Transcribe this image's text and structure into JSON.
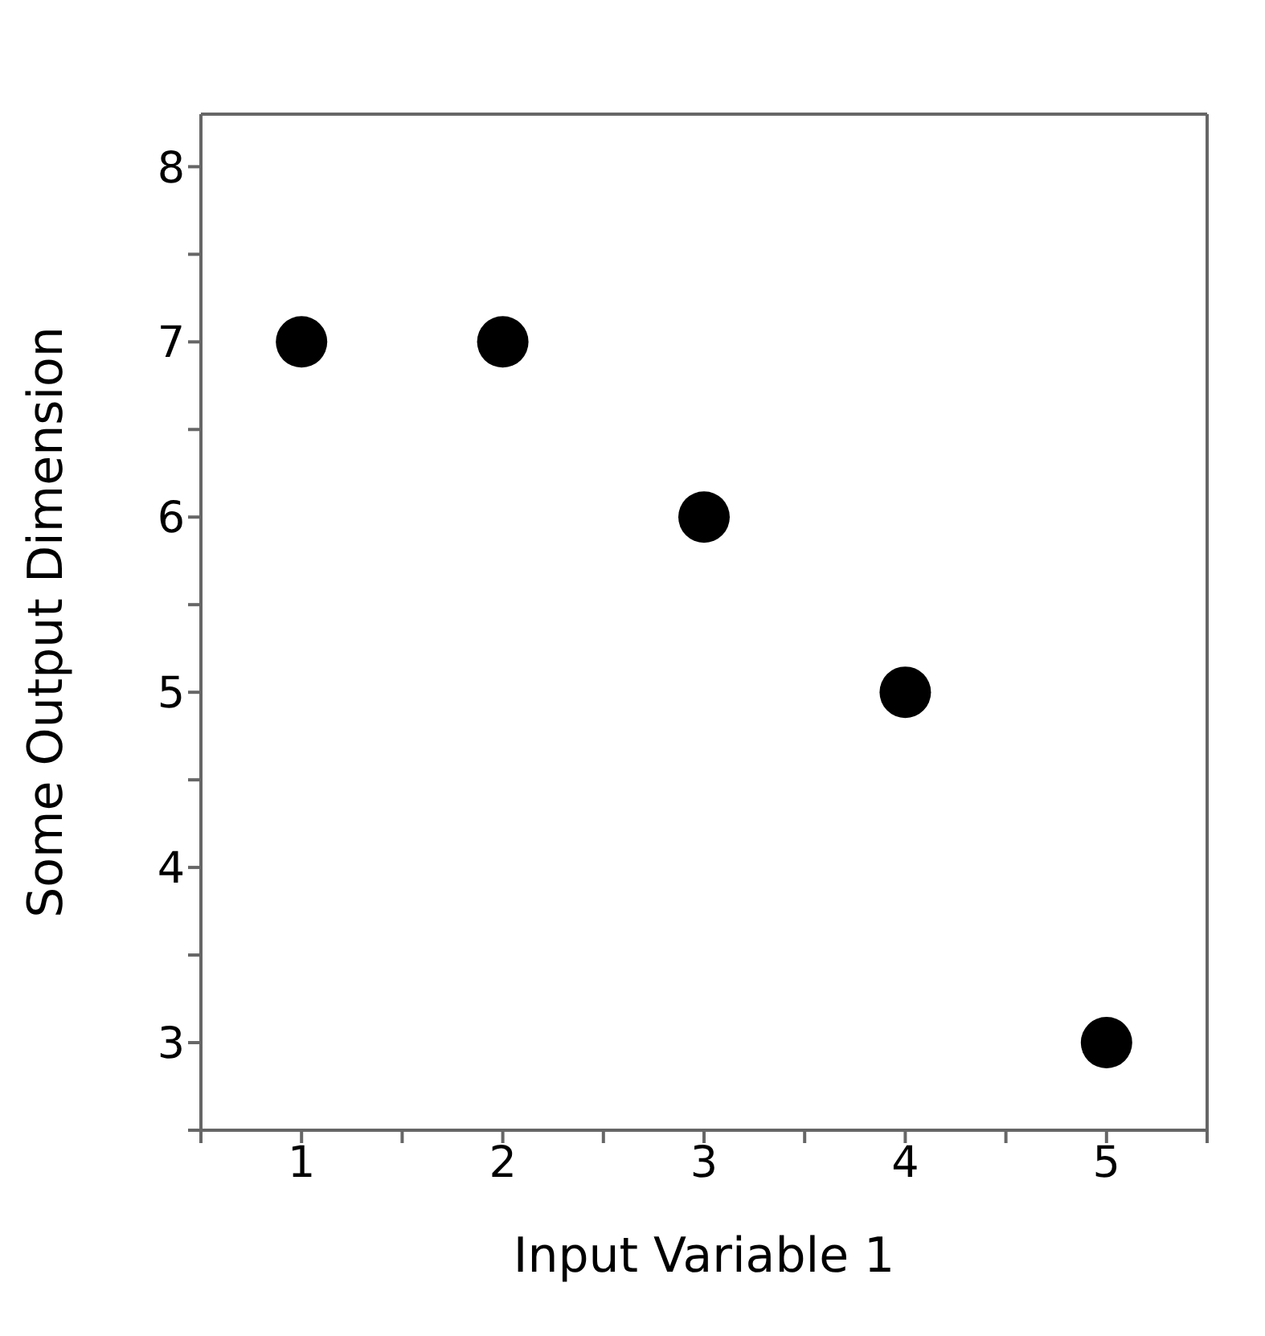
{
  "chart_data": {
    "type": "scatter",
    "xlabel": "Input Variable 1",
    "ylabel": "Some Output Dimension",
    "x": [
      1,
      2,
      3,
      4,
      5
    ],
    "series": [
      {
        "color": "#000000",
        "values": [
          7,
          7,
          6,
          5,
          3
        ]
      }
    ],
    "xlim": [
      0.5,
      5.5
    ],
    "xticks": [
      {
        "value": 0.5,
        "label": null
      },
      1,
      {
        "value": 1.5,
        "label": null
      },
      2,
      {
        "value": 2.5,
        "label": null
      },
      3,
      {
        "value": 3.5,
        "label": null
      },
      4,
      {
        "value": 4.5,
        "label": null
      },
      5,
      {
        "value": 5.5,
        "label": null
      }
    ],
    "ylim": [
      2.5,
      8.3
    ],
    "yticks": [
      {
        "value": 2.5,
        "label": null
      },
      3,
      {
        "value": 3.5,
        "label": null
      },
      4,
      {
        "value": 4.5,
        "label": null
      },
      5,
      {
        "value": 5.5,
        "label": null
      },
      6,
      {
        "value": 6.5,
        "label": null
      },
      7,
      {
        "value": 7.5,
        "label": null
      },
      8
    ],
    "marker": "circle"
  }
}
